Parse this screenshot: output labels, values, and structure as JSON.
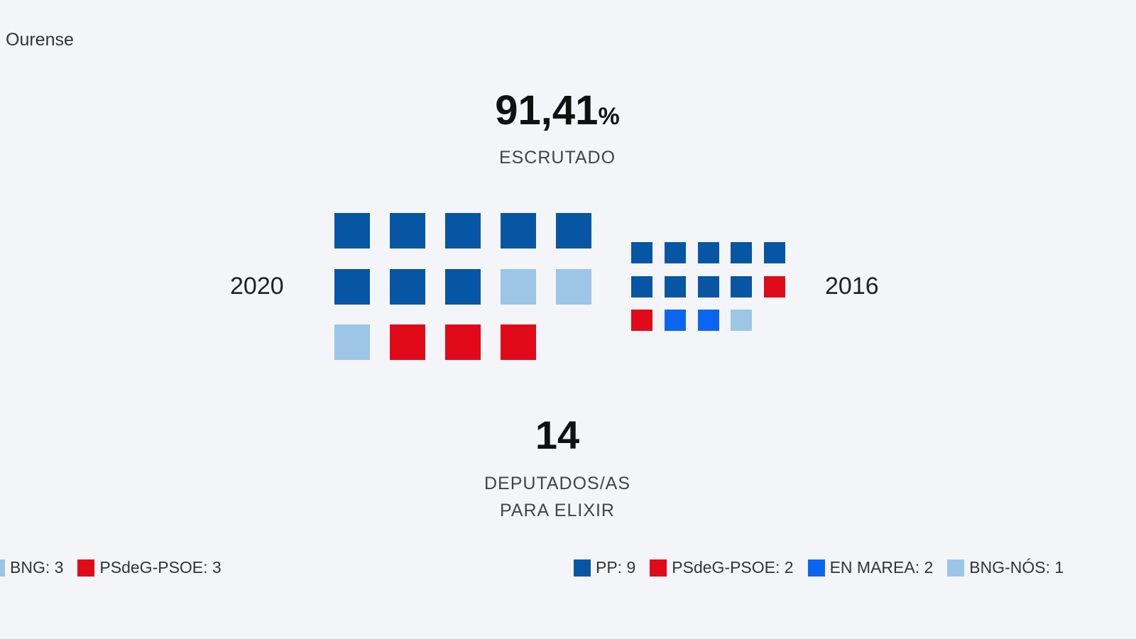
{
  "region": "Ourense",
  "scrutinized": {
    "value": "91,41",
    "unit": "%",
    "label": "ESCRUTADO"
  },
  "seats": {
    "value": "14",
    "label_line1": "DEPUTADOS/AS",
    "label_line2": "PARA ELIXIR"
  },
  "colors": {
    "PP": "#0656a3",
    "PSdeG-PSOE": "#e10a19",
    "EN MAREA": "#0a66f2",
    "BNG": "#9cc5e6"
  },
  "chart_data": [
    {
      "type": "waffle",
      "year": "2020",
      "series": [
        {
          "name": "PP",
          "value": 8,
          "color": "#0656a3"
        },
        {
          "name": "BNG",
          "value": 3,
          "color": "#9cc5e6"
        },
        {
          "name": "PSdeG-PSOE",
          "value": 3,
          "color": "#e10a19"
        }
      ],
      "legend": [
        {
          "label": "BNG: 3",
          "color": "#9cc5e6"
        },
        {
          "label": "PSdeG-PSOE: 3",
          "color": "#e10a19"
        }
      ]
    },
    {
      "type": "waffle",
      "year": "2016",
      "series": [
        {
          "name": "PP",
          "value": 9,
          "color": "#0656a3"
        },
        {
          "name": "PSdeG-PSOE",
          "value": 2,
          "color": "#e10a19"
        },
        {
          "name": "EN MAREA",
          "value": 2,
          "color": "#0a66f2"
        },
        {
          "name": "BNG-NÓS",
          "value": 1,
          "color": "#9cc5e6"
        }
      ],
      "legend": [
        {
          "label": "PP: 9",
          "color": "#0656a3"
        },
        {
          "label": "PSdeG-PSOE: 2",
          "color": "#e10a19"
        },
        {
          "label": "EN MAREA: 2",
          "color": "#0a66f2"
        },
        {
          "label": "BNG-NÓS: 1",
          "color": "#9cc5e6"
        }
      ]
    }
  ]
}
